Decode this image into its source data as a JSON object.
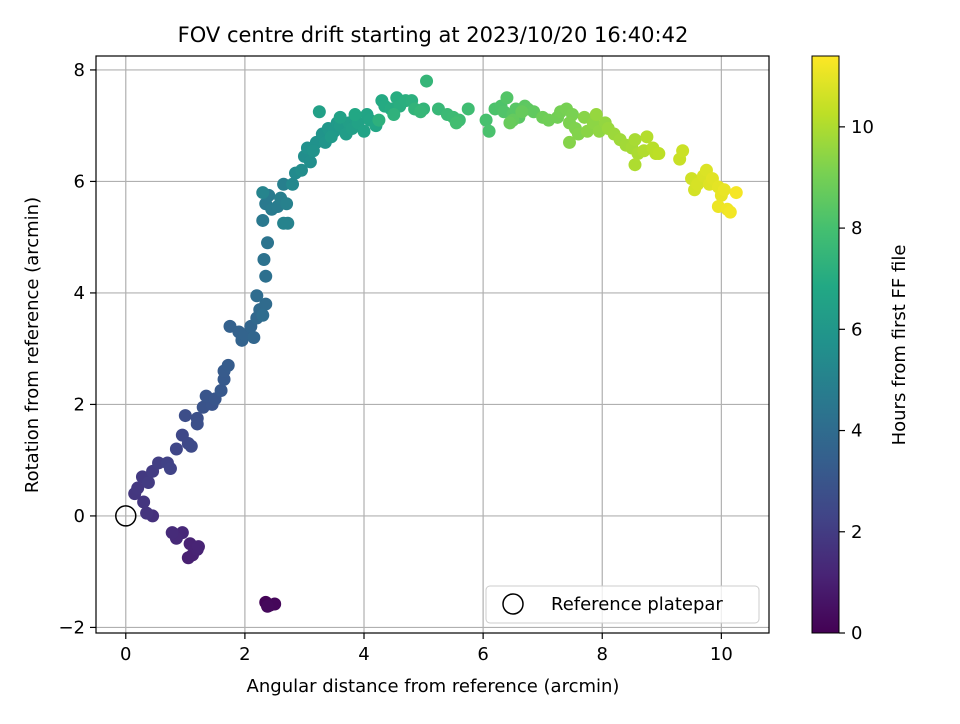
{
  "chart_data": {
    "type": "scatter",
    "title": "FOV centre drift starting at 2023/10/20 16:40:42",
    "xlabel": "Angular distance from reference (arcmin)",
    "ylabel": "Rotation from reference (arcmin)",
    "colorbar_label": "Hours from first FF file",
    "xlim": [
      -0.5,
      10.8
    ],
    "ylim": [
      -2.1,
      8.25
    ],
    "clim": [
      0,
      11.4
    ],
    "xticks": [
      "0",
      "2",
      "4",
      "6",
      "8",
      "10"
    ],
    "yticks": [
      "−2",
      "0",
      "2",
      "4",
      "6",
      "8"
    ],
    "cticks": [
      "0",
      "2",
      "4",
      "6",
      "8",
      "10"
    ],
    "grid": true,
    "colormap": "viridis",
    "legend": {
      "position": "bottom-right",
      "entries": [
        "Reference platepar"
      ]
    },
    "reference_point": {
      "x": 0,
      "y": 0,
      "label": "Reference platepar"
    },
    "series": [
      {
        "points": [
          [
            2.35,
            -1.55,
            0.1
          ],
          [
            2.42,
            -1.6,
            0.15
          ],
          [
            2.5,
            -1.58,
            0.2
          ],
          [
            2.38,
            -1.62,
            0.25
          ],
          [
            1.05,
            -0.75,
            1.0
          ],
          [
            1.12,
            -0.7,
            1.05
          ],
          [
            1.2,
            -0.6,
            1.1
          ],
          [
            1.08,
            -0.5,
            1.12
          ],
          [
            1.22,
            -0.55,
            1.15
          ],
          [
            0.95,
            -0.3,
            1.3
          ],
          [
            0.85,
            -0.4,
            1.35
          ],
          [
            0.78,
            -0.3,
            1.4
          ],
          [
            0.45,
            0.0,
            1.6
          ],
          [
            0.35,
            0.05,
            1.7
          ],
          [
            0.3,
            0.25,
            1.75
          ],
          [
            0.15,
            0.4,
            1.8
          ],
          [
            0.2,
            0.5,
            1.85
          ],
          [
            0.28,
            0.7,
            1.9
          ],
          [
            0.38,
            0.6,
            1.95
          ],
          [
            0.45,
            0.8,
            2.0
          ],
          [
            0.55,
            0.95,
            2.1
          ],
          [
            0.7,
            0.95,
            2.2
          ],
          [
            0.75,
            0.85,
            2.25
          ],
          [
            0.85,
            1.2,
            2.4
          ],
          [
            0.95,
            1.45,
            2.45
          ],
          [
            1.05,
            1.3,
            2.5
          ],
          [
            1.1,
            1.25,
            2.55
          ],
          [
            1.0,
            1.8,
            2.7
          ],
          [
            1.2,
            1.75,
            2.75
          ],
          [
            1.2,
            1.65,
            2.8
          ],
          [
            1.3,
            1.95,
            2.9
          ],
          [
            1.45,
            2.0,
            2.95
          ],
          [
            1.35,
            2.15,
            3.0
          ],
          [
            1.5,
            2.1,
            3.05
          ],
          [
            1.6,
            2.25,
            3.15
          ],
          [
            1.65,
            2.45,
            3.2
          ],
          [
            1.65,
            2.6,
            3.25
          ],
          [
            1.72,
            2.7,
            3.3
          ],
          [
            1.75,
            3.4,
            3.5
          ],
          [
            1.9,
            3.3,
            3.55
          ],
          [
            1.95,
            3.15,
            3.6
          ],
          [
            2.0,
            3.25,
            3.65
          ],
          [
            2.1,
            3.4,
            3.7
          ],
          [
            2.15,
            3.2,
            3.75
          ],
          [
            2.2,
            3.55,
            3.85
          ],
          [
            2.25,
            3.7,
            3.9
          ],
          [
            2.35,
            3.8,
            3.95
          ],
          [
            2.2,
            3.95,
            4.0
          ],
          [
            2.3,
            3.6,
            4.05
          ],
          [
            2.35,
            4.3,
            4.2
          ],
          [
            2.32,
            4.6,
            4.3
          ],
          [
            2.38,
            4.9,
            4.4
          ],
          [
            2.3,
            5.3,
            4.55
          ],
          [
            2.35,
            5.6,
            4.6
          ],
          [
            2.4,
            5.75,
            4.65
          ],
          [
            2.45,
            5.5,
            4.7
          ],
          [
            2.55,
            5.55,
            4.75
          ],
          [
            2.6,
            5.7,
            4.85
          ],
          [
            2.65,
            5.95,
            4.9
          ],
          [
            2.7,
            5.6,
            4.95
          ],
          [
            2.72,
            5.25,
            5.0
          ],
          [
            2.65,
            5.25,
            5.05
          ],
          [
            2.3,
            5.8,
            5.1
          ],
          [
            2.8,
            5.95,
            5.3
          ],
          [
            2.85,
            6.15,
            5.4
          ],
          [
            2.95,
            6.2,
            5.5
          ],
          [
            3.0,
            6.45,
            5.55
          ],
          [
            3.1,
            6.35,
            5.6
          ],
          [
            3.05,
            6.6,
            5.7
          ],
          [
            3.2,
            6.7,
            5.75
          ],
          [
            3.15,
            6.55,
            5.8
          ],
          [
            3.3,
            6.85,
            5.85
          ],
          [
            3.35,
            6.7,
            5.9
          ],
          [
            3.4,
            6.95,
            6.0
          ],
          [
            3.5,
            6.9,
            6.05
          ],
          [
            3.55,
            7.05,
            6.1
          ],
          [
            3.45,
            6.8,
            6.15
          ],
          [
            3.6,
            7.0,
            6.2
          ],
          [
            3.7,
            6.85,
            6.3
          ],
          [
            3.75,
            7.05,
            6.35
          ],
          [
            3.8,
            6.95,
            6.4
          ],
          [
            3.25,
            7.25,
            6.45
          ],
          [
            3.6,
            7.15,
            6.5
          ],
          [
            3.9,
            7.05,
            6.55
          ],
          [
            4.0,
            6.9,
            6.6
          ],
          [
            4.05,
            7.2,
            6.65
          ],
          [
            4.1,
            7.1,
            6.7
          ],
          [
            4.2,
            7.0,
            6.75
          ],
          [
            3.85,
            7.2,
            6.8
          ],
          [
            4.3,
            7.45,
            6.9
          ],
          [
            4.35,
            7.35,
            6.95
          ],
          [
            4.45,
            7.3,
            7.0
          ],
          [
            4.55,
            7.5,
            7.05
          ],
          [
            4.6,
            7.35,
            7.1
          ],
          [
            4.7,
            7.45,
            7.15
          ],
          [
            4.8,
            7.45,
            7.2
          ],
          [
            4.25,
            7.1,
            7.25
          ],
          [
            4.5,
            7.2,
            7.3
          ],
          [
            4.85,
            7.3,
            7.4
          ],
          [
            5.0,
            7.3,
            7.45
          ],
          [
            5.05,
            7.8,
            7.5
          ],
          [
            4.95,
            7.25,
            7.55
          ],
          [
            5.25,
            7.3,
            7.6
          ],
          [
            5.4,
            7.2,
            7.7
          ],
          [
            5.5,
            7.15,
            7.75
          ],
          [
            5.6,
            7.1,
            7.8
          ],
          [
            5.75,
            7.3,
            7.85
          ],
          [
            5.55,
            7.05,
            7.9
          ],
          [
            6.05,
            7.1,
            8.05
          ],
          [
            6.1,
            6.9,
            8.1
          ],
          [
            6.2,
            7.3,
            8.15
          ],
          [
            6.3,
            7.35,
            8.2
          ],
          [
            6.35,
            7.25,
            8.25
          ],
          [
            6.4,
            7.5,
            8.3
          ],
          [
            6.5,
            7.2,
            8.35
          ],
          [
            6.55,
            7.3,
            8.4
          ],
          [
            6.6,
            7.15,
            8.45
          ],
          [
            6.7,
            7.35,
            8.5
          ],
          [
            6.75,
            7.3,
            8.55
          ],
          [
            6.85,
            7.25,
            8.6
          ],
          [
            6.5,
            7.1,
            8.65
          ],
          [
            6.65,
            7.25,
            8.7
          ],
          [
            6.45,
            7.05,
            8.75
          ],
          [
            7.0,
            7.15,
            8.85
          ],
          [
            7.1,
            7.1,
            8.9
          ],
          [
            7.25,
            7.15,
            8.95
          ],
          [
            7.3,
            7.25,
            9.0
          ],
          [
            7.4,
            7.3,
            9.05
          ],
          [
            7.5,
            7.2,
            9.1
          ],
          [
            7.45,
            7.05,
            9.15
          ],
          [
            7.55,
            6.95,
            9.2
          ],
          [
            7.6,
            6.85,
            9.25
          ],
          [
            7.45,
            6.7,
            9.3
          ],
          [
            7.7,
            7.15,
            9.35
          ],
          [
            7.75,
            6.9,
            9.4
          ],
          [
            7.85,
            7.05,
            9.45
          ],
          [
            7.95,
            6.9,
            9.5
          ],
          [
            8.05,
            7.05,
            9.55
          ],
          [
            7.9,
            7.2,
            9.6
          ],
          [
            8.1,
            6.95,
            9.65
          ],
          [
            8.2,
            6.85,
            9.7
          ],
          [
            8.3,
            6.75,
            9.75
          ],
          [
            8.4,
            6.65,
            9.8
          ],
          [
            8.5,
            6.6,
            9.85
          ],
          [
            8.55,
            6.75,
            9.9
          ],
          [
            8.6,
            6.5,
            9.95
          ],
          [
            8.55,
            6.3,
            10.0
          ],
          [
            8.7,
            6.55,
            10.05
          ],
          [
            8.75,
            6.8,
            10.1
          ],
          [
            8.85,
            6.6,
            10.15
          ],
          [
            8.9,
            6.5,
            10.2
          ],
          [
            8.95,
            6.5,
            10.25
          ],
          [
            9.3,
            6.4,
            10.45
          ],
          [
            9.35,
            6.55,
            10.5
          ],
          [
            9.5,
            6.05,
            10.6
          ],
          [
            9.55,
            5.85,
            10.65
          ],
          [
            9.6,
            5.95,
            10.7
          ],
          [
            9.7,
            6.1,
            10.75
          ],
          [
            9.75,
            6.2,
            10.8
          ],
          [
            9.8,
            5.95,
            10.85
          ],
          [
            9.85,
            6.05,
            10.9
          ],
          [
            9.95,
            5.9,
            10.95
          ],
          [
            10.0,
            5.75,
            11.0
          ],
          [
            10.05,
            5.85,
            11.05
          ],
          [
            9.95,
            5.55,
            11.1
          ],
          [
            10.1,
            5.5,
            11.15
          ],
          [
            10.15,
            5.45,
            11.2
          ],
          [
            10.25,
            5.8,
            11.25
          ]
        ]
      }
    ]
  }
}
